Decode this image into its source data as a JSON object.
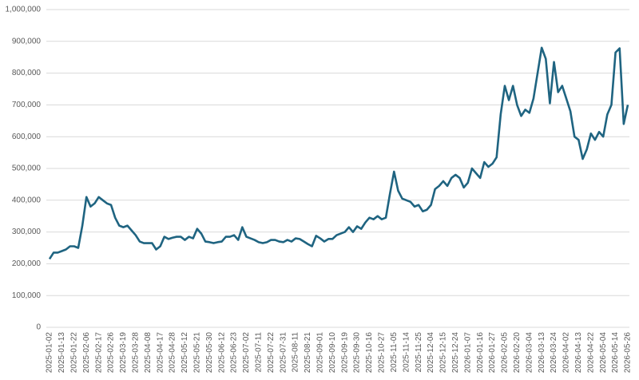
{
  "chart_data": {
    "type": "line",
    "categories": [
      "2025-01-02",
      null,
      null,
      "2025-01-13",
      null,
      null,
      "2025-01-22",
      null,
      null,
      "2025-02-06",
      null,
      null,
      "2025-02-17",
      null,
      null,
      "2025-02-26",
      null,
      null,
      "2025-03-19",
      null,
      null,
      "2025-03-28",
      null,
      null,
      "2025-04-08",
      null,
      null,
      "2025-04-17",
      null,
      null,
      "2025-04-28",
      null,
      null,
      "2025-05-12",
      null,
      null,
      "2025-05-21",
      null,
      null,
      "2025-05-30",
      null,
      null,
      "2025-06-12",
      null,
      null,
      "2025-06-23",
      null,
      null,
      "2025-07-02",
      null,
      null,
      "2025-07-11",
      null,
      null,
      "2025-07-22",
      null,
      null,
      "2025-07-31",
      null,
      null,
      "2025-08-11",
      null,
      null,
      "2025-08-21",
      null,
      null,
      "2025-09-01",
      null,
      null,
      "2025-09-10",
      null,
      null,
      "2025-09-19",
      null,
      null,
      "2025-09-30",
      null,
      null,
      "2025-10-16",
      null,
      null,
      "2025-10-27",
      null,
      null,
      "2025-11-05",
      null,
      null,
      "2025-11-14",
      null,
      null,
      "2025-11-25",
      null,
      null,
      "2025-12-04",
      null,
      null,
      "2025-12-15",
      null,
      null,
      "2025-12-24",
      null,
      null,
      "2026-01-07",
      null,
      null,
      "2026-01-16",
      null,
      null,
      "2026-01-27",
      null,
      null,
      "2026-02-05",
      null,
      null,
      "2026-02-20",
      null,
      null,
      "2026-03-04",
      null,
      null,
      "2026-03-13",
      null,
      null,
      "2026-03-24",
      null,
      null,
      "2026-04-02",
      null,
      null,
      "2026-04-13",
      null,
      null,
      "2026-04-22",
      null,
      null,
      "2026-05-04",
      null,
      null,
      "2026-05-14",
      null,
      null,
      "2026-05-26"
    ],
    "values": [
      215000,
      235000,
      235000,
      240000,
      245000,
      255000,
      255000,
      250000,
      320000,
      410000,
      380000,
      390000,
      410000,
      400000,
      390000,
      385000,
      345000,
      320000,
      315000,
      320000,
      305000,
      290000,
      270000,
      265000,
      265000,
      265000,
      245000,
      255000,
      285000,
      278000,
      282000,
      285000,
      285000,
      275000,
      285000,
      280000,
      310000,
      295000,
      270000,
      268000,
      265000,
      268000,
      270000,
      285000,
      285000,
      290000,
      275000,
      315000,
      285000,
      280000,
      275000,
      268000,
      265000,
      268000,
      275000,
      275000,
      270000,
      268000,
      275000,
      270000,
      280000,
      278000,
      270000,
      262000,
      255000,
      288000,
      280000,
      270000,
      278000,
      278000,
      290000,
      295000,
      300000,
      315000,
      300000,
      318000,
      310000,
      330000,
      345000,
      340000,
      350000,
      340000,
      345000,
      420000,
      490000,
      430000,
      405000,
      400000,
      395000,
      380000,
      385000,
      365000,
      370000,
      385000,
      435000,
      445000,
      460000,
      445000,
      470000,
      480000,
      470000,
      440000,
      455000,
      500000,
      485000,
      470000,
      520000,
      505000,
      515000,
      535000,
      670000,
      760000,
      715000,
      760000,
      700000,
      665000,
      685000,
      675000,
      720000,
      800000,
      880000,
      845000,
      705000,
      835000,
      740000,
      760000,
      720000,
      680000,
      600000,
      590000,
      530000,
      560000,
      610000,
      590000,
      615000,
      600000,
      670000,
      700000,
      865000,
      878000,
      640000,
      700000
    ],
    "color": "#1f6481",
    "ylim": [
      0,
      1000000
    ],
    "yticks": [
      0,
      {
        "value": 100000,
        "label": "100,000"
      },
      {
        "value": 200000,
        "label": "200,000"
      },
      {
        "value": 300000,
        "label": "300,000"
      },
      {
        "value": 400000,
        "label": "400,000"
      },
      {
        "value": 500000,
        "label": "500,000"
      },
      {
        "value": 600000,
        "label": "600,000"
      },
      {
        "value": 700000,
        "label": "700,000"
      },
      {
        "value": 800000,
        "label": "800,000"
      },
      {
        "value": 900000,
        "label": "900,000"
      },
      {
        "value": 1000000,
        "label": "1,000,000"
      }
    ],
    "grid": true
  }
}
